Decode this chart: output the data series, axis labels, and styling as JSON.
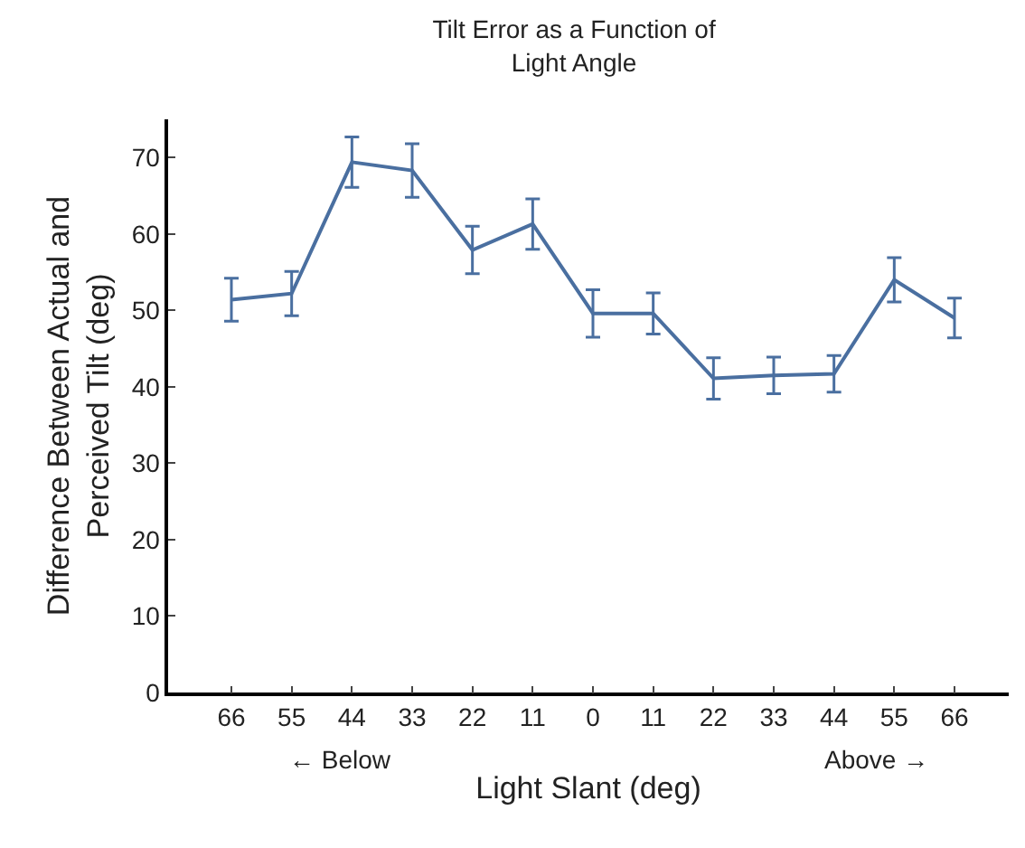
{
  "chart_data": {
    "type": "line",
    "title": "Tilt Error as a Function of\nLight Angle",
    "xlabel": "Light Slant (deg)",
    "ylabel": "Difference Between Actual and\nPerceived Tilt (deg)",
    "categories": [
      "66",
      "55",
      "44",
      "33",
      "22",
      "11",
      "0",
      "11",
      "22",
      "33",
      "44",
      "55",
      "66"
    ],
    "series": [
      {
        "color": "#4a6fa0",
        "values": [
          51.4,
          52.2,
          69.4,
          68.3,
          57.9,
          61.3,
          49.6,
          49.6,
          41.1,
          41.5,
          41.7,
          54.0,
          49.0
        ],
        "errors": [
          2.8,
          2.9,
          3.3,
          3.5,
          3.1,
          3.3,
          3.1,
          2.7,
          2.7,
          2.4,
          2.4,
          2.9,
          2.6
        ]
      }
    ],
    "ylim": [
      0,
      75
    ],
    "yticks": [
      0,
      10,
      20,
      30,
      40,
      50,
      60,
      70
    ],
    "grid": false,
    "marker": "none",
    "line_style": "solid",
    "annotations": [
      "← Below",
      "Above →"
    ]
  }
}
